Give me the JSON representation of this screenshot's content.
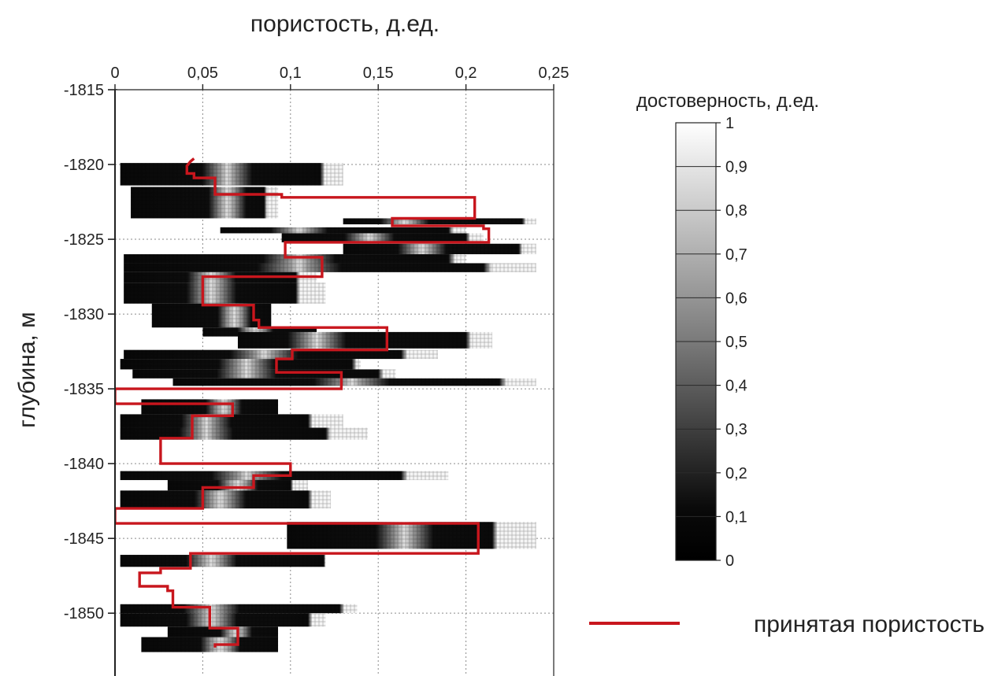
{
  "chart_data": {
    "type": "heatmap",
    "title": "",
    "xlabel": "пористость, д.ед.",
    "ylabel": "глубина, м",
    "x_axis_position": "top",
    "xlim": [
      0,
      0.25
    ],
    "ylim": [
      -1815,
      -1854.2
    ],
    "grid": true,
    "x_ticks": [
      "0",
      "0,05",
      "0,1",
      "0,15",
      "0,2",
      "0,25"
    ],
    "y_ticks": [
      "-1815",
      "-1820",
      "-1825",
      "-1830",
      "-1835",
      "-1840",
      "-1845",
      "-1850",
      "-1850"
    ],
    "colorbar": {
      "title": "достоверность, д.ед.",
      "range": [
        0,
        1
      ],
      "ticks": [
        "0",
        "0,1",
        "0,2",
        "0,3",
        "0,4",
        "0,5",
        "0,6",
        "0,7",
        "0,8",
        "0,9",
        "1"
      ],
      "scale": "black = 0, white = 1"
    },
    "legend": {
      "label": "принятая пористость",
      "color": "#c8161d",
      "placement": "bottom-right"
    },
    "bands": [
      {
        "d": [
          -1819.9,
          -1821.4
        ],
        "x": [
          0.003,
          0.13
        ],
        "peak": [
          0.06,
          0.068
        ],
        "fade": 0.117
      },
      {
        "d": [
          -1821.5,
          -1823.6
        ],
        "x": [
          0.009,
          0.093
        ],
        "peak": [
          0.06,
          0.068
        ],
        "fade": 0.085
      },
      {
        "d": [
          -1823.6,
          -1824.0
        ],
        "x": [
          0.13,
          0.24
        ],
        "peak": [
          0.16,
          0.17
        ],
        "fade": 0.232
      },
      {
        "d": [
          -1824.2,
          -1824.6
        ],
        "x": [
          0.06,
          0.2
        ],
        "peak": [
          0.1,
          0.11
        ],
        "fade": 0.19
      },
      {
        "d": [
          -1824.6,
          -1825.2
        ],
        "x": [
          0.095,
          0.21
        ],
        "peak": [
          0.14,
          0.15
        ],
        "fade": 0.2
      },
      {
        "d": [
          -1825.3,
          -1826.0
        ],
        "x": [
          0.13,
          0.24
        ],
        "peak": [
          0.17,
          0.18
        ],
        "fade": 0.23
      },
      {
        "d": [
          -1826.0,
          -1826.6
        ],
        "x": [
          0.005,
          0.2
        ],
        "peak": [
          0.1,
          0.11
        ],
        "fade": 0.19
      },
      {
        "d": [
          -1826.6,
          -1827.2
        ],
        "x": [
          0.005,
          0.24
        ],
        "peak": [
          0.1,
          0.11
        ],
        "fade": 0.21
      },
      {
        "d": [
          -1827.2,
          -1827.9
        ],
        "x": [
          0.005,
          0.115
        ],
        "peak": [
          0.05,
          0.06
        ],
        "fade": 0.103
      },
      {
        "d": [
          -1827.9,
          -1829.3
        ],
        "x": [
          0.005,
          0.12
        ],
        "peak": [
          0.05,
          0.06
        ],
        "fade": 0.103
      },
      {
        "d": [
          -1829.3,
          -1830.9
        ],
        "x": [
          0.021,
          0.089
        ],
        "peak": [
          0.064,
          0.072
        ],
        "fade": 0.089
      },
      {
        "d": [
          -1830.9,
          -1831.5
        ],
        "x": [
          0.05,
          0.115
        ],
        "peak": [
          0.075,
          0.085
        ],
        "fade": 0.115
      },
      {
        "d": [
          -1831.2,
          -1832.3
        ],
        "x": [
          0.07,
          0.215
        ],
        "peak": [
          0.11,
          0.12
        ],
        "fade": 0.2
      },
      {
        "d": [
          -1832.4,
          -1833.0
        ],
        "x": [
          0.005,
          0.184
        ],
        "peak": [
          0.08,
          0.09
        ],
        "fade": 0.163
      },
      {
        "d": [
          -1833.0,
          -1833.7
        ],
        "x": [
          0.003,
          0.14
        ],
        "peak": [
          0.07,
          0.08
        ],
        "fade": 0.135
      },
      {
        "d": [
          -1833.7,
          -1834.3
        ],
        "x": [
          0.01,
          0.16
        ],
        "peak": [
          0.07,
          0.08
        ],
        "fade": 0.15
      },
      {
        "d": [
          -1834.3,
          -1834.8
        ],
        "x": [
          0.033,
          0.24
        ],
        "peak": [
          0.13,
          0.14
        ],
        "fade": 0.219
      },
      {
        "d": [
          -1835.7,
          -1836.7
        ],
        "x": [
          0.015,
          0.093
        ],
        "peak": [
          0.058,
          0.066
        ],
        "fade": 0.093
      },
      {
        "d": [
          -1836.7,
          -1837.6
        ],
        "x": [
          0.003,
          0.13
        ],
        "peak": [
          0.048,
          0.056
        ],
        "fade": 0.11
      },
      {
        "d": [
          -1837.6,
          -1838.4
        ],
        "x": [
          0.003,
          0.144
        ],
        "peak": [
          0.048,
          0.056
        ],
        "fade": 0.12
      },
      {
        "d": [
          -1840.5,
          -1841.1
        ],
        "x": [
          0.003,
          0.19
        ],
        "peak": [
          0.07,
          0.08
        ],
        "fade": 0.163
      },
      {
        "d": [
          -1841.1,
          -1841.8
        ],
        "x": [
          0.03,
          0.11
        ],
        "peak": [
          0.065,
          0.075
        ],
        "fade": 0.1
      },
      {
        "d": [
          -1841.8,
          -1843.0
        ],
        "x": [
          0.003,
          0.123
        ],
        "peak": [
          0.055,
          0.065
        ],
        "fade": 0.11
      },
      {
        "d": [
          -1843.9,
          -1845.7
        ],
        "x": [
          0.098,
          0.24
        ],
        "peak": [
          0.16,
          0.17
        ],
        "fade": 0.215
      },
      {
        "d": [
          -1846.1,
          -1846.9
        ],
        "x": [
          0.003,
          0.12
        ],
        "peak": [
          0.05,
          0.06
        ],
        "fade": 0.119
      },
      {
        "d": [
          -1849.4,
          -1850.0
        ],
        "x": [
          0.003,
          0.138
        ],
        "peak": [
          0.05,
          0.06
        ],
        "fade": 0.128
      },
      {
        "d": [
          -1850.0,
          -1850.9
        ],
        "x": [
          0.003,
          0.12
        ],
        "peak": [
          0.05,
          0.06
        ],
        "fade": 0.11
      },
      {
        "d": [
          -1850.9,
          -1851.6
        ],
        "x": [
          0.03,
          0.093
        ],
        "peak": [
          0.065,
          0.073
        ],
        "fade": 0.093
      },
      {
        "d": [
          -1851.6,
          -1852.6
        ],
        "x": [
          0.015,
          0.093
        ],
        "peak": [
          0.055,
          0.065
        ],
        "fade": 0.093
      }
    ],
    "series": [
      {
        "name": "принятая пористость",
        "x": [
          0.045,
          0.043,
          0.041,
          0.041,
          0.045,
          0.045,
          0.057,
          0.057,
          0.095,
          0.095,
          0.205,
          0.205,
          0.158,
          0.158,
          0.21,
          0.21,
          0.213,
          0.213,
          0.097,
          0.097,
          0.118,
          0.118,
          0.05,
          0.05,
          0.079,
          0.079,
          0.082,
          0.082,
          0.155,
          0.155,
          0.101,
          0.101,
          0.092,
          0.092,
          0.129,
          0.129,
          0.0,
          0.0,
          0.067,
          0.067,
          0.044,
          0.044,
          0.026,
          0.026,
          0.1,
          0.1,
          0.079,
          0.079,
          0.05,
          0.05,
          0.0,
          0.0,
          0.207,
          0.207,
          0.043,
          0.043,
          0.026,
          0.026,
          0.014,
          0.014,
          0.03,
          0.03,
          0.033,
          0.033,
          0.054,
          0.054,
          0.07,
          0.07,
          0.057,
          0.057
        ],
        "depth": [
          -1819.6,
          -1819.8,
          -1820.1,
          -1820.6,
          -1820.6,
          -1820.9,
          -1820.9,
          -1822.0,
          -1822.0,
          -1822.2,
          -1822.2,
          -1823.6,
          -1823.6,
          -1824.1,
          -1824.1,
          -1824.3,
          -1824.3,
          -1825.2,
          -1825.2,
          -1826.2,
          -1826.2,
          -1827.5,
          -1827.5,
          -1829.4,
          -1829.4,
          -1830.4,
          -1830.4,
          -1830.9,
          -1830.9,
          -1832.4,
          -1832.4,
          -1833.0,
          -1833.0,
          -1833.9,
          -1833.9,
          -1835.0,
          -1835.0,
          -1836.0,
          -1836.0,
          -1836.8,
          -1836.8,
          -1838.3,
          -1838.3,
          -1840.0,
          -1840.0,
          -1840.8,
          -1840.8,
          -1841.6,
          -1841.6,
          -1843.0,
          -1843.0,
          -1844.0,
          -1844.0,
          -1846.0,
          -1846.0,
          -1847.0,
          -1847.0,
          -1847.3,
          -1847.3,
          -1848.2,
          -1848.2,
          -1848.5,
          -1848.5,
          -1849.6,
          -1849.6,
          -1851.0,
          -1851.0,
          -1852.1,
          -1852.1,
          -1852.3
        ]
      }
    ]
  }
}
